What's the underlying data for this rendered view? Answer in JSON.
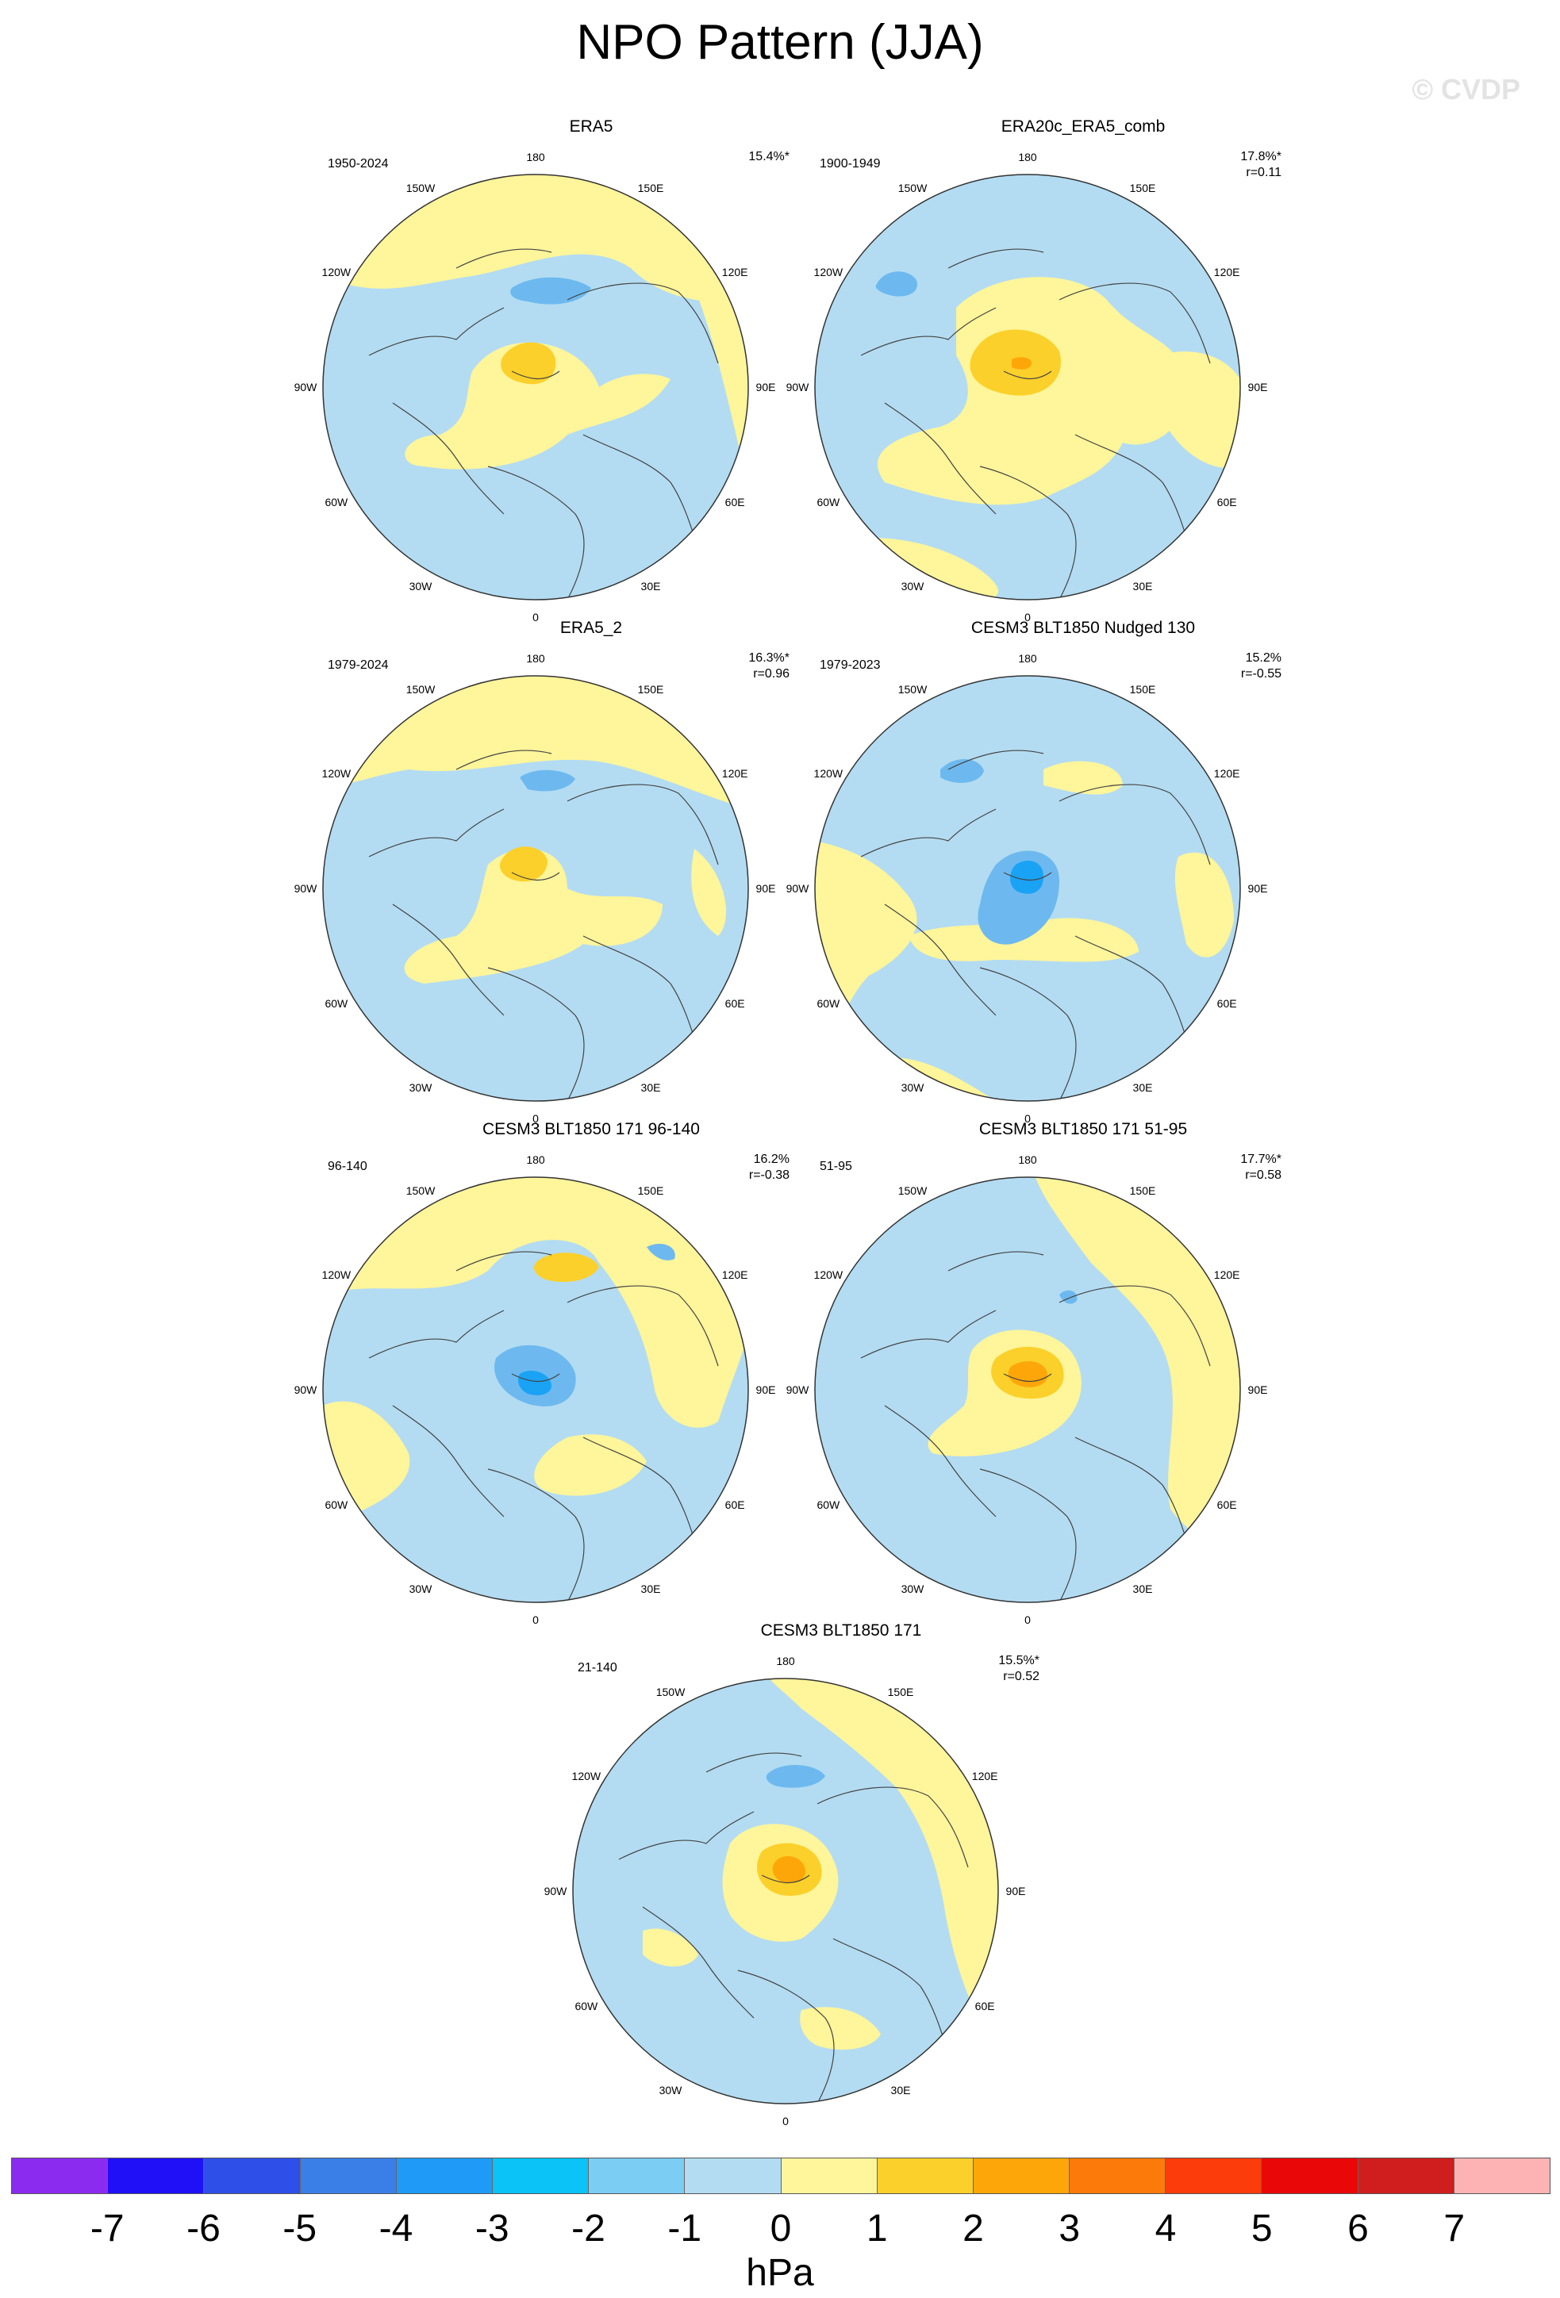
{
  "title": "NPO Pattern (JJA)",
  "watermark": "© CVDP",
  "lon_labels": [
    "180",
    "150E",
    "120E",
    "90E",
    "60E",
    "30E",
    "0",
    "30W",
    "60W",
    "90W",
    "120W",
    "150W"
  ],
  "colors": {
    "ocean_neg": "#b3dcf2",
    "land_pos": "#fff59a",
    "pos_2": "#fcd02a",
    "pos_3": "#fda60a",
    "neg_3": "#6db9ef",
    "neg_4": "#1aa3f5",
    "coast": "#444444"
  },
  "panels": [
    {
      "title": "ERA5",
      "years": "1950-2024",
      "stat1": "15.4%*",
      "stat2": "",
      "variant": 0
    },
    {
      "title": "ERA20c_ERA5_comb",
      "years": "1900-1949",
      "stat1": "17.8%*",
      "stat2": "r=0.11",
      "variant": 1
    },
    {
      "title": "ERA5_2",
      "years": "1979-2024",
      "stat1": "16.3%*",
      "stat2": "r=0.96",
      "variant": 2
    },
    {
      "title": "CESM3 BLT1850 Nudged 130",
      "years": "1979-2023",
      "stat1": "15.2%",
      "stat2": "r=-0.55",
      "variant": 3
    },
    {
      "title": "CESM3 BLT1850 171 96-140",
      "years": "96-140",
      "stat1": "16.2%",
      "stat2": "r=-0.38",
      "variant": 4
    },
    {
      "title": "CESM3 BLT1850 171 51-95",
      "years": "51-95",
      "stat1": "17.7%*",
      "stat2": "r=0.58",
      "variant": 5
    },
    {
      "title": "CESM3 BLT1850 171",
      "years": "21-140",
      "stat1": "15.5%*",
      "stat2": "r=0.52",
      "variant": 6
    }
  ],
  "colorbar": {
    "colors": [
      "#8b2bf0",
      "#1f10f7",
      "#2e4fe8",
      "#3a7fe8",
      "#1f9bf7",
      "#0bc3f7",
      "#7bcdf3",
      "#b3dcf2",
      "#fff59a",
      "#fcd02a",
      "#fda60a",
      "#fc7a0a",
      "#fc3c0a",
      "#e90707",
      "#d01e1e",
      "#fdb3b3"
    ],
    "ticks": [
      "-7",
      "-6",
      "-5",
      "-4",
      "-3",
      "-2",
      "-1",
      "0",
      "1",
      "2",
      "3",
      "4",
      "5",
      "6",
      "7"
    ],
    "units": "hPa"
  }
}
